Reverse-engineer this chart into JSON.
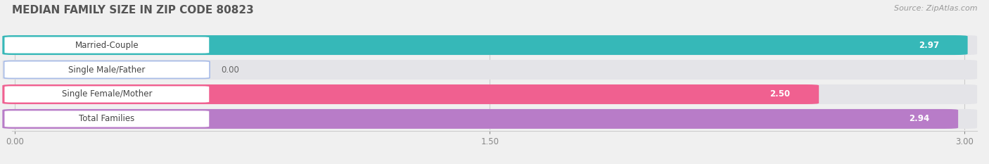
{
  "title": "MEDIAN FAMILY SIZE IN ZIP CODE 80823",
  "source": "Source: ZipAtlas.com",
  "categories": [
    "Married-Couple",
    "Single Male/Father",
    "Single Female/Mother",
    "Total Families"
  ],
  "values": [
    2.97,
    0.0,
    2.5,
    2.94
  ],
  "bar_colors": [
    "#36b8b8",
    "#a8bce8",
    "#f06090",
    "#b87cc8"
  ],
  "bar_bg_color": "#e4e4e8",
  "row_bg_color": "#efefef",
  "background_color": "#f0f0f0",
  "xlim_min": 0.0,
  "xlim_max": 3.0,
  "xtick_labels": [
    "0.00",
    "1.50",
    "3.00"
  ],
  "xtick_vals": [
    0.0,
    1.5,
    3.0
  ],
  "value_labels": [
    "2.97",
    "0.00",
    "2.50",
    "2.94"
  ],
  "title_fontsize": 11,
  "source_fontsize": 8,
  "bar_label_fontsize": 8.5,
  "value_fontsize": 8.5
}
